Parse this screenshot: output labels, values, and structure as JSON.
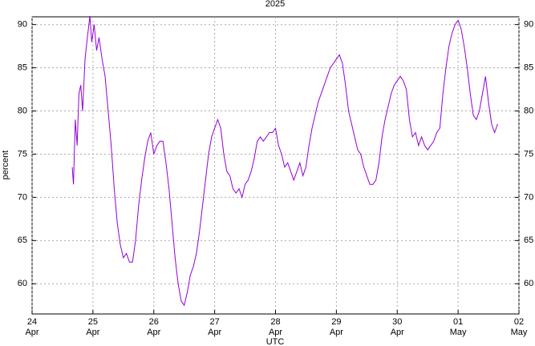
{
  "chart_data": {
    "type": "line",
    "title": "2025",
    "x_label": "UTC",
    "y_label": "percent",
    "xlim": [
      0,
      8
    ],
    "xticks": [
      {
        "value": 0,
        "label": "24 Apr"
      },
      {
        "value": 1,
        "label": "25 Apr"
      },
      {
        "value": 2,
        "label": "26 Apr"
      },
      {
        "value": 3,
        "label": "27 Apr"
      },
      {
        "value": 4,
        "label": "28 Apr"
      },
      {
        "value": 5,
        "label": "29 Apr"
      },
      {
        "value": 6,
        "label": "30 Apr"
      },
      {
        "value": 7,
        "label": "01 May"
      },
      {
        "value": 8,
        "label": "02 May"
      }
    ],
    "ylim": [
      56.5,
      90.9
    ],
    "yticks": [
      60,
      65,
      70,
      75,
      80,
      85,
      90
    ],
    "y2lim": [
      56.5,
      90.9
    ],
    "y2ticks": [
      60,
      65,
      70,
      75,
      80,
      85,
      90
    ],
    "grid": true,
    "x": [
      0.66,
      0.68,
      0.71,
      0.74,
      0.77,
      0.8,
      0.83,
      0.87,
      0.9,
      0.95,
      0.98,
      1.02,
      1.06,
      1.1,
      1.15,
      1.2,
      1.25,
      1.3,
      1.35,
      1.4,
      1.45,
      1.5,
      1.55,
      1.6,
      1.65,
      1.7,
      1.75,
      1.8,
      1.85,
      1.9,
      1.95,
      2.0,
      2.05,
      2.1,
      2.15,
      2.2,
      2.25,
      2.3,
      2.35,
      2.4,
      2.45,
      2.5,
      2.55,
      2.6,
      2.65,
      2.7,
      2.75,
      2.8,
      2.85,
      2.9,
      2.95,
      3.0,
      3.05,
      3.1,
      3.15,
      3.2,
      3.25,
      3.3,
      3.35,
      3.4,
      3.45,
      3.5,
      3.55,
      3.6,
      3.65,
      3.7,
      3.75,
      3.8,
      3.85,
      3.9,
      3.95,
      4.0,
      4.05,
      4.1,
      4.15,
      4.2,
      4.25,
      4.3,
      4.35,
      4.4,
      4.45,
      4.5,
      4.55,
      4.6,
      4.7,
      4.8,
      4.9,
      5.0,
      5.05,
      5.1,
      5.15,
      5.2,
      5.25,
      5.3,
      5.35,
      5.4,
      5.45,
      5.5,
      5.55,
      5.6,
      5.65,
      5.7,
      5.75,
      5.8,
      5.85,
      5.9,
      5.95,
      6.0,
      6.05,
      6.1,
      6.15,
      6.2,
      6.25,
      6.3,
      6.35,
      6.4,
      6.45,
      6.5,
      6.55,
      6.6,
      6.65,
      6.7,
      6.75,
      6.8,
      6.85,
      6.9,
      6.95,
      7.0,
      7.05,
      7.1,
      7.15,
      7.2,
      7.25,
      7.3,
      7.35,
      7.4,
      7.45,
      7.5,
      7.55,
      7.6,
      7.65
    ],
    "series": [
      {
        "color": "#9400d3",
        "values": [
          73.5,
          71.5,
          79,
          76,
          82,
          83,
          80,
          86,
          88,
          91,
          88,
          90,
          87,
          88.5,
          86,
          84,
          80,
          76,
          71,
          67,
          64.5,
          63,
          63.5,
          62.5,
          62.5,
          65,
          69,
          72,
          74.5,
          76.5,
          77.5,
          75,
          76,
          76.5,
          76.5,
          74,
          71,
          67,
          63,
          60,
          58,
          57.5,
          59,
          61,
          62,
          63.5,
          66,
          69,
          72,
          75,
          77,
          78,
          79,
          78,
          75,
          73,
          72.5,
          71,
          70.5,
          71,
          70,
          71.5,
          72,
          73,
          74.5,
          76.5,
          77,
          76.5,
          77,
          77.5,
          77.5,
          78,
          76,
          75,
          73.5,
          74,
          73,
          72,
          73,
          74,
          72.5,
          73.5,
          76,
          78,
          81,
          83,
          85,
          86,
          86.5,
          85.5,
          83,
          80,
          78.5,
          77,
          75.5,
          75,
          73.5,
          72.5,
          71.5,
          71.5,
          72,
          74,
          77,
          79,
          80.5,
          82,
          83,
          83.5,
          84,
          83.5,
          82.5,
          79,
          77,
          77.5,
          76,
          77,
          76,
          75.5,
          76,
          76.5,
          77.5,
          78,
          82,
          85,
          87.5,
          89,
          90,
          90.5,
          89.5,
          87.5,
          85,
          82,
          79.5,
          79,
          80,
          82,
          84,
          81,
          78.5,
          77.5,
          78.5
        ]
      }
    ]
  }
}
